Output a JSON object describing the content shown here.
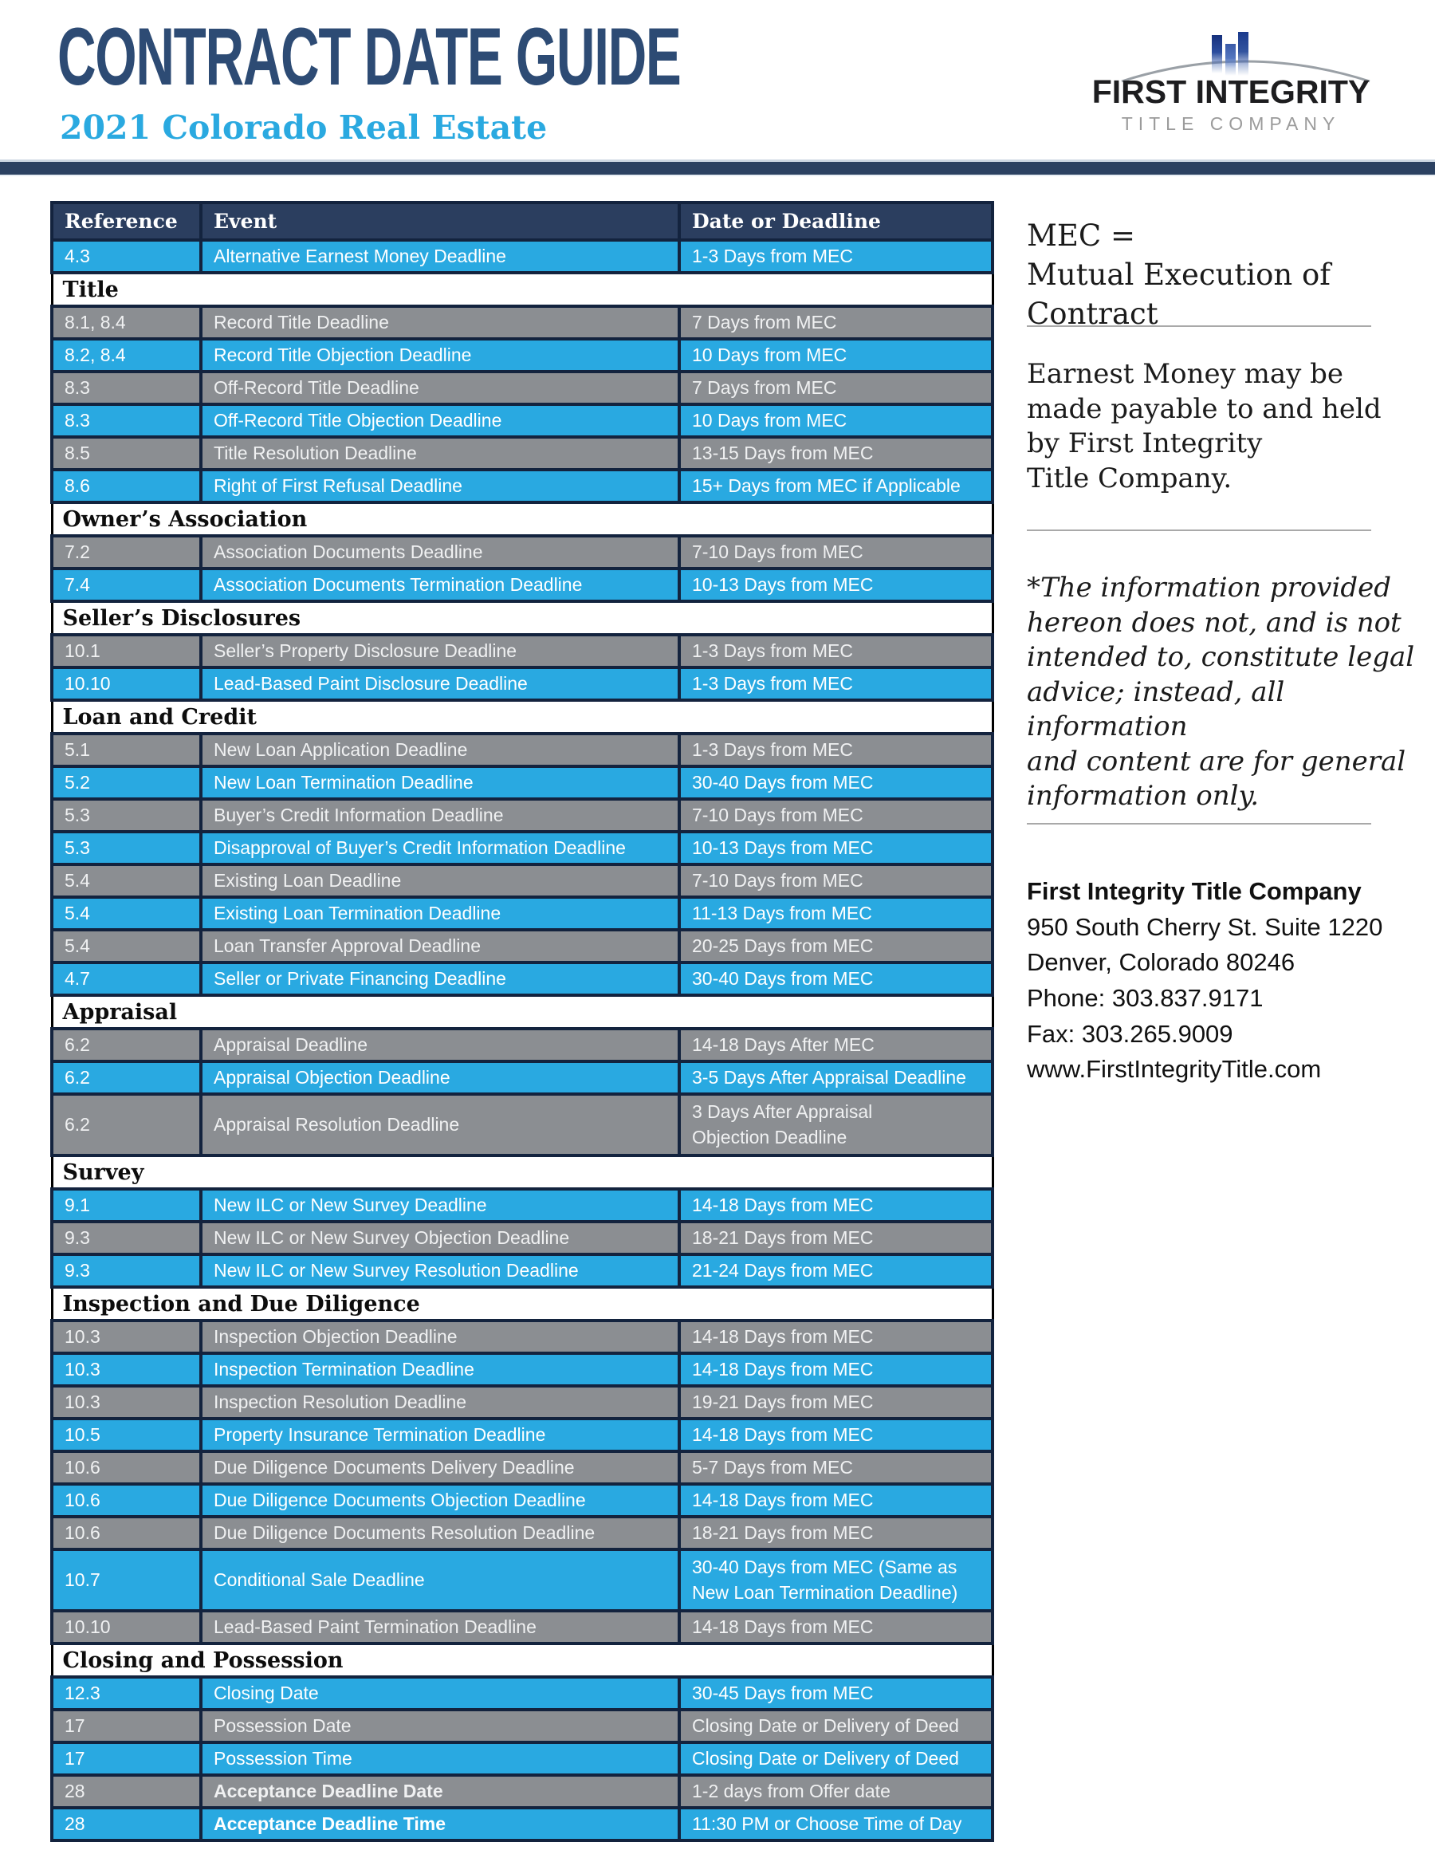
{
  "header": {
    "title": "CONTRACT DATE GUIDE",
    "subtitle": "2021 Colorado Real Estate"
  },
  "logo": {
    "name": "FIRST INTEGRITY",
    "subname": "TITLE COMPANY"
  },
  "colors": {
    "title_navy": "#2d4b74",
    "subtitle_blue": "#2aa9e0",
    "rule_navy": "#2b4161",
    "header_row_navy": "#2b3e5f",
    "row_blue": "#29a9e1",
    "row_gray": "#8b8e92",
    "row_border_navy": "#13233e",
    "section_border_black": "#000000"
  },
  "table": {
    "headers": [
      "Reference",
      "Event",
      "Date or Deadline"
    ],
    "rows": [
      {
        "type": "data",
        "color": "blue",
        "ref": "4.3",
        "event": "Alternative Earnest Money Deadline",
        "date": "1-3 Days from MEC"
      },
      {
        "type": "section",
        "label": "Title"
      },
      {
        "type": "data",
        "color": "gray",
        "ref": "8.1, 8.4",
        "event": "Record Title Deadline",
        "date": "7 Days from MEC"
      },
      {
        "type": "data",
        "color": "blue",
        "ref": "8.2, 8.4",
        "event": "Record Title Objection Deadline",
        "date": "10 Days from MEC"
      },
      {
        "type": "data",
        "color": "gray",
        "ref": "8.3",
        "event": "Off-Record Title Deadline",
        "date": "7 Days from MEC"
      },
      {
        "type": "data",
        "color": "blue",
        "ref": "8.3",
        "event": "Off-Record Title Objection Deadline",
        "date": "10 Days from MEC"
      },
      {
        "type": "data",
        "color": "gray",
        "ref": "8.5",
        "event": "Title Resolution Deadline",
        "date": "13-15 Days from MEC"
      },
      {
        "type": "data",
        "color": "blue",
        "ref": "8.6",
        "event": "Right of First Refusal Deadline",
        "date": "15+ Days from MEC if Applicable"
      },
      {
        "type": "section",
        "label": "Owner’s Association"
      },
      {
        "type": "data",
        "color": "gray",
        "ref": "7.2",
        "event": "Association Documents Deadline",
        "date": "7-10 Days from MEC"
      },
      {
        "type": "data",
        "color": "blue",
        "ref": "7.4",
        "event": "Association Documents Termination Deadline",
        "date": "10-13 Days from MEC"
      },
      {
        "type": "section",
        "label": "Seller’s Disclosures"
      },
      {
        "type": "data",
        "color": "gray",
        "ref": "10.1",
        "event": "Seller’s Property Disclosure Deadline",
        "date": "1-3 Days from MEC"
      },
      {
        "type": "data",
        "color": "blue",
        "ref": "10.10",
        "event": "Lead-Based Paint Disclosure Deadline",
        "date": "1-3 Days from MEC"
      },
      {
        "type": "section",
        "label": "Loan and Credit"
      },
      {
        "type": "data",
        "color": "gray",
        "ref": "5.1",
        "event": "New Loan Application Deadline",
        "date": "1-3 Days from MEC"
      },
      {
        "type": "data",
        "color": "blue",
        "ref": "5.2",
        "event": "New Loan Termination Deadline",
        "date": "30-40 Days from MEC"
      },
      {
        "type": "data",
        "color": "gray",
        "ref": "5.3",
        "event": "Buyer’s Credit Information Deadline",
        "date": "7-10 Days from MEC"
      },
      {
        "type": "data",
        "color": "blue",
        "ref": "5.3",
        "event": "Disapproval of Buyer’s Credit Information Deadline",
        "date": "10-13 Days from MEC"
      },
      {
        "type": "data",
        "color": "gray",
        "ref": "5.4",
        "event": "Existing Loan Deadline",
        "date": "7-10 Days from MEC"
      },
      {
        "type": "data",
        "color": "blue",
        "ref": "5.4",
        "event": "Existing Loan Termination Deadline",
        "date": "11-13 Days from MEC"
      },
      {
        "type": "data",
        "color": "gray",
        "ref": "5.4",
        "event": "Loan Transfer Approval Deadline",
        "date": "20-25 Days from MEC"
      },
      {
        "type": "data",
        "color": "blue",
        "ref": "4.7",
        "event": "Seller or Private Financing Deadline",
        "date": "30-40 Days from MEC"
      },
      {
        "type": "section",
        "label": "Appraisal"
      },
      {
        "type": "data",
        "color": "gray",
        "ref": "6.2",
        "event": "Appraisal Deadline",
        "date": "14-18 Days After MEC"
      },
      {
        "type": "data",
        "color": "blue",
        "ref": "6.2",
        "event": "Appraisal Objection Deadline",
        "date": "3-5 Days After Appraisal Deadline"
      },
      {
        "type": "data",
        "color": "gray",
        "tall": true,
        "ref": "6.2",
        "event": "Appraisal Resolution Deadline",
        "date": "3 Days After Appraisal\nObjection Deadline"
      },
      {
        "type": "section",
        "label": "Survey"
      },
      {
        "type": "data",
        "color": "blue",
        "ref": "9.1",
        "event": "New ILC or New Survey Deadline",
        "date": "14-18 Days from MEC"
      },
      {
        "type": "data",
        "color": "gray",
        "ref": "9.3",
        "event": "New ILC or New Survey Objection Deadline",
        "date": "18-21 Days from MEC"
      },
      {
        "type": "data",
        "color": "blue",
        "ref": "9.3",
        "event": "New ILC or New Survey Resolution Deadline",
        "date": "21-24 Days from MEC"
      },
      {
        "type": "section",
        "label": "Inspection and Due Diligence"
      },
      {
        "type": "data",
        "color": "gray",
        "ref": "10.3",
        "event": "Inspection Objection Deadline",
        "date": "14-18 Days from MEC"
      },
      {
        "type": "data",
        "color": "blue",
        "ref": "10.3",
        "event": "Inspection Termination Deadline",
        "date": "14-18 Days from MEC"
      },
      {
        "type": "data",
        "color": "gray",
        "ref": "10.3",
        "event": "Inspection Resolution Deadline",
        "date": "19-21 Days from MEC"
      },
      {
        "type": "data",
        "color": "blue",
        "ref": "10.5",
        "event": "Property Insurance Termination Deadline",
        "date": "14-18 Days from MEC"
      },
      {
        "type": "data",
        "color": "gray",
        "ref": "10.6",
        "event": "Due Diligence Documents Delivery Deadline",
        "date": "5-7 Days from MEC"
      },
      {
        "type": "data",
        "color": "blue",
        "ref": "10.6",
        "event": "Due Diligence Documents Objection Deadline",
        "date": "14-18 Days from MEC"
      },
      {
        "type": "data",
        "color": "gray",
        "ref": "10.6",
        "event": "Due Diligence Documents Resolution Deadline",
        "date": "18-21 Days from MEC"
      },
      {
        "type": "data",
        "color": "blue",
        "tall": true,
        "ref": "10.7",
        "event": "Conditional Sale Deadline",
        "date": "30-40 Days from MEC (Same as New Loan Termination Deadline)"
      },
      {
        "type": "data",
        "color": "gray",
        "ref": "10.10",
        "event": "Lead-Based Paint Termination Deadline",
        "date": "14-18 Days from MEC"
      },
      {
        "type": "section",
        "label": "Closing and Possession"
      },
      {
        "type": "data",
        "color": "blue",
        "ref": "12.3",
        "event": "Closing Date",
        "date": "30-45 Days from MEC"
      },
      {
        "type": "data",
        "color": "gray",
        "ref": "17",
        "event": "Possession Date",
        "date": "Closing Date or Delivery of Deed"
      },
      {
        "type": "data",
        "color": "blue",
        "ref": "17",
        "event": "Possession Time",
        "date": "Closing Date or Delivery of Deed"
      },
      {
        "type": "data",
        "color": "gray",
        "bold": true,
        "ref": "28",
        "event": "Acceptance Deadline Date",
        "date": "1-2 days from Offer date"
      },
      {
        "type": "data",
        "color": "blue",
        "bold": true,
        "ref": "28",
        "event": "Acceptance Deadline Time",
        "date": "11:30 PM or Choose Time of Day"
      }
    ]
  },
  "sidebar": {
    "mec_note": "MEC =\nMutual Execution of Contract",
    "earnest_note": "Earnest Money may be\nmade payable to and held\nby First Integrity\nTitle Company.",
    "disclaimer_note": "*The information provided\nhereon does not, and is not\nintended to, constitute legal\nadvice; instead, all information\nand content are for general\ninformation only.",
    "contact": {
      "company": "First Integrity Title Company",
      "address1": "950 South Cherry St. Suite 1220",
      "address2": "Denver, Colorado 80246",
      "phone": "Phone: 303.837.9171",
      "fax": "Fax: 303.265.9009",
      "website": "www.FirstIntegrityTitle.com"
    }
  }
}
